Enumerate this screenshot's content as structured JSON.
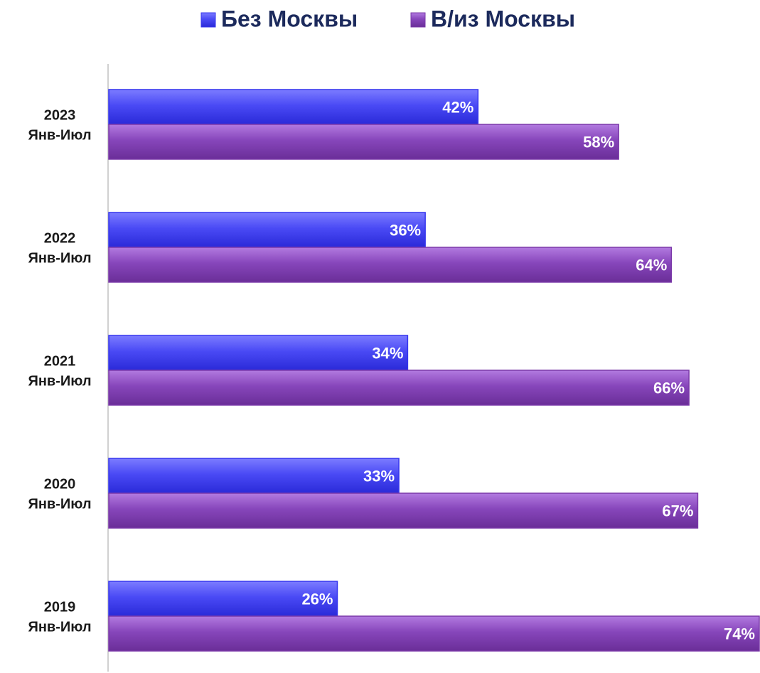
{
  "chart_data": {
    "type": "bar",
    "orientation": "horizontal",
    "categories": [
      [
        "2023",
        "Янв-Июл"
      ],
      [
        "2022",
        "Янв-Июл"
      ],
      [
        "2021",
        "Янв-Июл"
      ],
      [
        "2020",
        "Янв-Июл"
      ],
      [
        "2019",
        "Янв-Июл"
      ]
    ],
    "series": [
      {
        "name": "Без Москвы",
        "color": "#3535ee",
        "values": [
          42,
          36,
          34,
          33,
          26
        ],
        "value_labels": [
          "42%",
          "36%",
          "34%",
          "33%",
          "26%"
        ]
      },
      {
        "name": "В/из Москвы",
        "color": "#7a38a8",
        "values": [
          58,
          64,
          66,
          67,
          74
        ],
        "value_labels": [
          "58%",
          "64%",
          "66%",
          "67%",
          "74%"
        ]
      }
    ],
    "legend": "top"
  }
}
